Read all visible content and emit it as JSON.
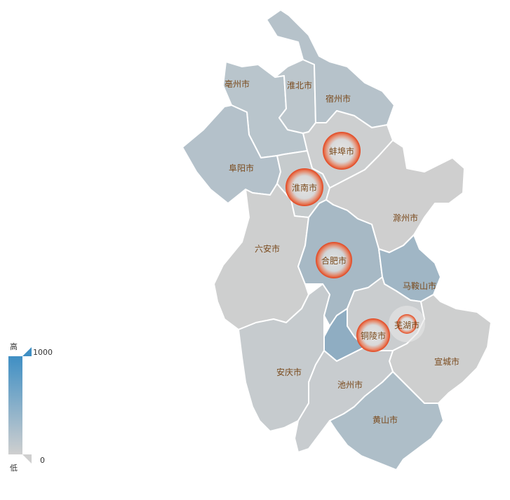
{
  "map": {
    "cities": [
      {
        "id": "bozhou",
        "name": "亳州市",
        "color": "#b9c5cc"
      },
      {
        "id": "huaibei",
        "name": "淮北市",
        "color": "#bcc6cc"
      },
      {
        "id": "suzhou",
        "name": "宿州市",
        "color": "#b6c2ca"
      },
      {
        "id": "fuyang",
        "name": "阜阳市",
        "color": "#b4c1ca"
      },
      {
        "id": "bengbu",
        "name": "蚌埠市",
        "color": "#cdcfd0"
      },
      {
        "id": "huainan",
        "name": "淮南市",
        "color": "#c6cbcd"
      },
      {
        "id": "chuzhou",
        "name": "滁州市",
        "color": "#cfcfcf"
      },
      {
        "id": "luan",
        "name": "六安市",
        "color": "#cecfcf"
      },
      {
        "id": "hefei",
        "name": "合肥市",
        "color": "#a7b9c5"
      },
      {
        "id": "maanshan",
        "name": "马鞍山市",
        "color": "#a0b6c5"
      },
      {
        "id": "wuhu",
        "name": "芜湖市",
        "color": "#cacdcf"
      },
      {
        "id": "tongling",
        "name": "铜陵市",
        "color": "#8fadc2"
      },
      {
        "id": "xuancheng",
        "name": "宣城市",
        "color": "#cecfcf"
      },
      {
        "id": "anqing",
        "name": "安庆市",
        "color": "#c6cbce"
      },
      {
        "id": "chizhou",
        "name": "池州市",
        "color": "#c8cccf"
      },
      {
        "id": "huangshan",
        "name": "黄山市",
        "color": "#aebec8"
      }
    ],
    "highlighted": [
      "bengbu",
      "huainan",
      "hefei",
      "tongling",
      "wuhu"
    ]
  },
  "legend": {
    "max_label": "1000",
    "min_label": "0",
    "high_label": "高",
    "low_label": "低",
    "color_high": "#3f8fc4",
    "color_low": "#cfcfcf"
  }
}
